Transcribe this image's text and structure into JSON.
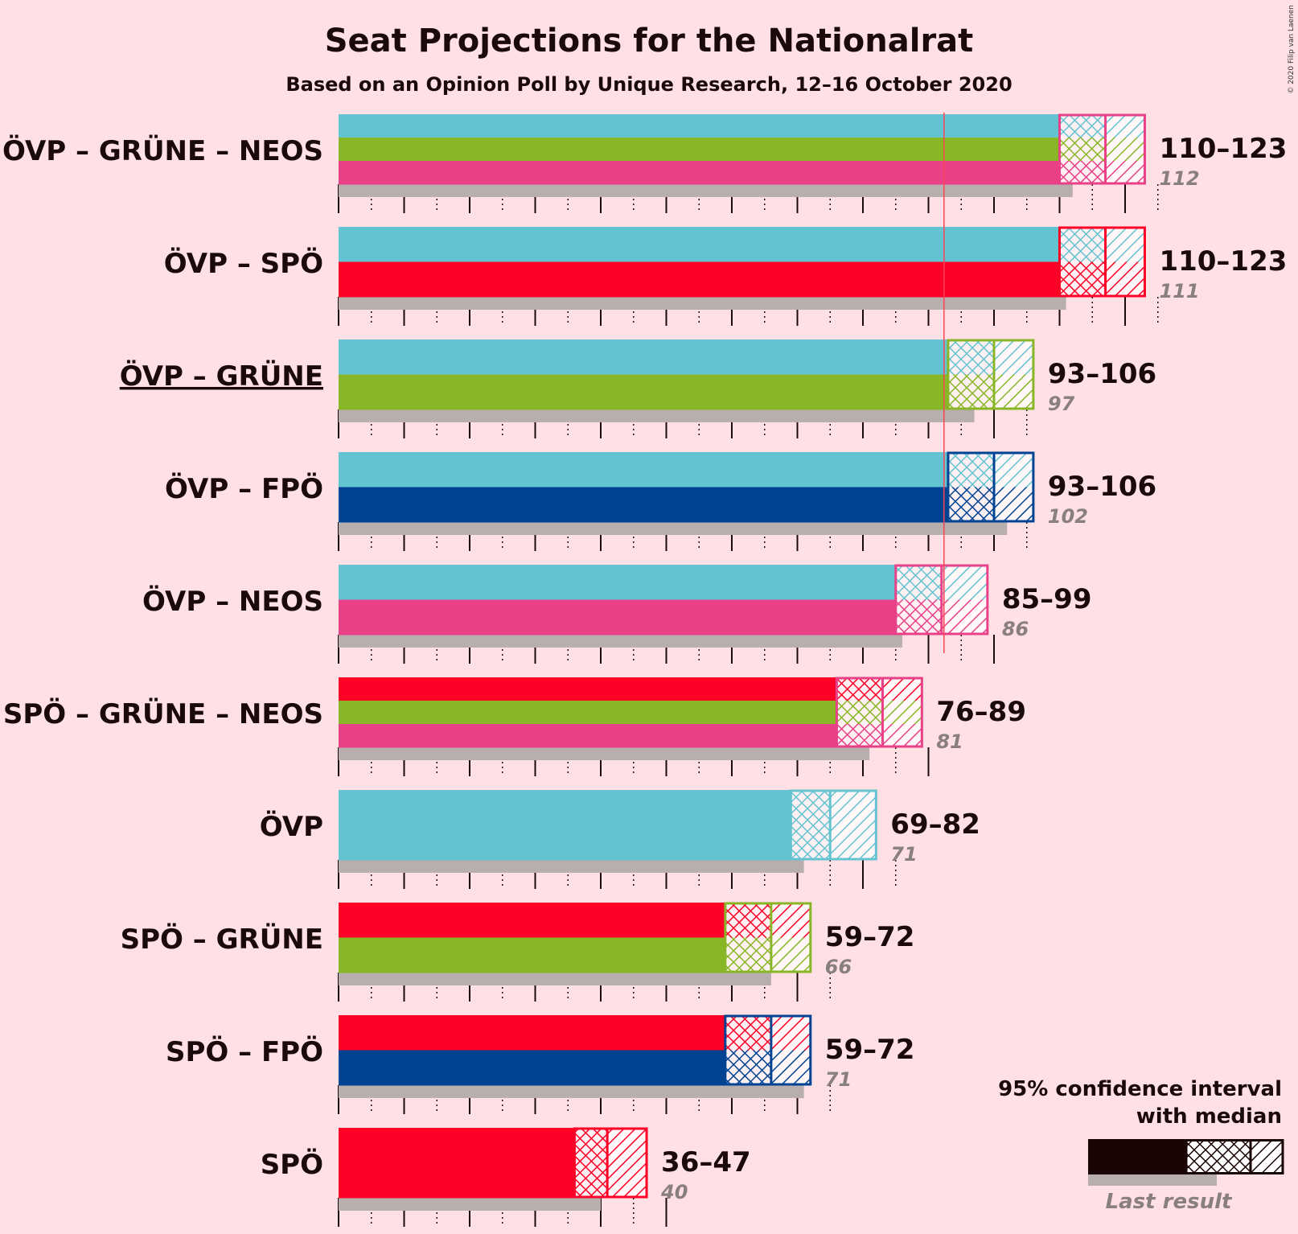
{
  "title": "Seat Projections for the Nationalrat",
  "subtitle": "Based on an Opinion Poll by Unique Research, 12–16 October 2020",
  "copyright": "© 2020 Filip van Laenen",
  "colors": {
    "ÖVP": "#63c3d0",
    "SPÖ": "#ff0026",
    "GRÜNE": "#88b626",
    "NEOS": "#e84188",
    "FPÖ": "#004392",
    "last_result": "#b8aeae",
    "majority_line": "#ff4455",
    "background": "#ffe0e4"
  },
  "chart_data": {
    "type": "bar",
    "orientation": "horizontal",
    "majority": 92,
    "x_range": [
      0,
      125
    ],
    "coalitions": [
      {
        "label": "ÖVP – GRÜNE – NEOS",
        "parties": [
          "ÖVP",
          "GRÜNE",
          "NEOS"
        ],
        "low": 110,
        "median": 117,
        "high": 123,
        "range_label": "110–123",
        "last": 112,
        "last_label": "112",
        "underlined": false
      },
      {
        "label": "ÖVP – SPÖ",
        "parties": [
          "ÖVP",
          "SPÖ"
        ],
        "low": 110,
        "median": 117,
        "high": 123,
        "range_label": "110–123",
        "last": 111,
        "last_label": "111",
        "underlined": false
      },
      {
        "label": "ÖVP – GRÜNE",
        "parties": [
          "ÖVP",
          "GRÜNE"
        ],
        "low": 93,
        "median": 100,
        "high": 106,
        "range_label": "93–106",
        "last": 97,
        "last_label": "97",
        "underlined": true
      },
      {
        "label": "ÖVP – FPÖ",
        "parties": [
          "ÖVP",
          "FPÖ"
        ],
        "low": 93,
        "median": 100,
        "high": 106,
        "range_label": "93–106",
        "last": 102,
        "last_label": "102",
        "underlined": false
      },
      {
        "label": "ÖVP – NEOS",
        "parties": [
          "ÖVP",
          "NEOS"
        ],
        "low": 85,
        "median": 92,
        "high": 99,
        "range_label": "85–99",
        "last": 86,
        "last_label": "86",
        "underlined": false
      },
      {
        "label": "SPÖ – GRÜNE – NEOS",
        "parties": [
          "SPÖ",
          "GRÜNE",
          "NEOS"
        ],
        "low": 76,
        "median": 83,
        "high": 89,
        "range_label": "76–89",
        "last": 81,
        "last_label": "81",
        "underlined": false
      },
      {
        "label": "ÖVP",
        "parties": [
          "ÖVP"
        ],
        "low": 69,
        "median": 75,
        "high": 82,
        "range_label": "69–82",
        "last": 71,
        "last_label": "71",
        "underlined": false
      },
      {
        "label": "SPÖ – GRÜNE",
        "parties": [
          "SPÖ",
          "GRÜNE"
        ],
        "low": 59,
        "median": 66,
        "high": 72,
        "range_label": "59–72",
        "last": 66,
        "last_label": "66",
        "underlined": false
      },
      {
        "label": "SPÖ – FPÖ",
        "parties": [
          "SPÖ",
          "FPÖ"
        ],
        "low": 59,
        "median": 66,
        "high": 72,
        "range_label": "59–72",
        "last": 71,
        "last_label": "71",
        "underlined": false
      },
      {
        "label": "SPÖ",
        "parties": [
          "SPÖ"
        ],
        "low": 36,
        "median": 41,
        "high": 47,
        "range_label": "36–47",
        "last": 40,
        "last_label": "40",
        "underlined": false
      }
    ],
    "legend": {
      "line1": "95% confidence interval",
      "line2": "with median",
      "last_result": "Last result"
    }
  }
}
